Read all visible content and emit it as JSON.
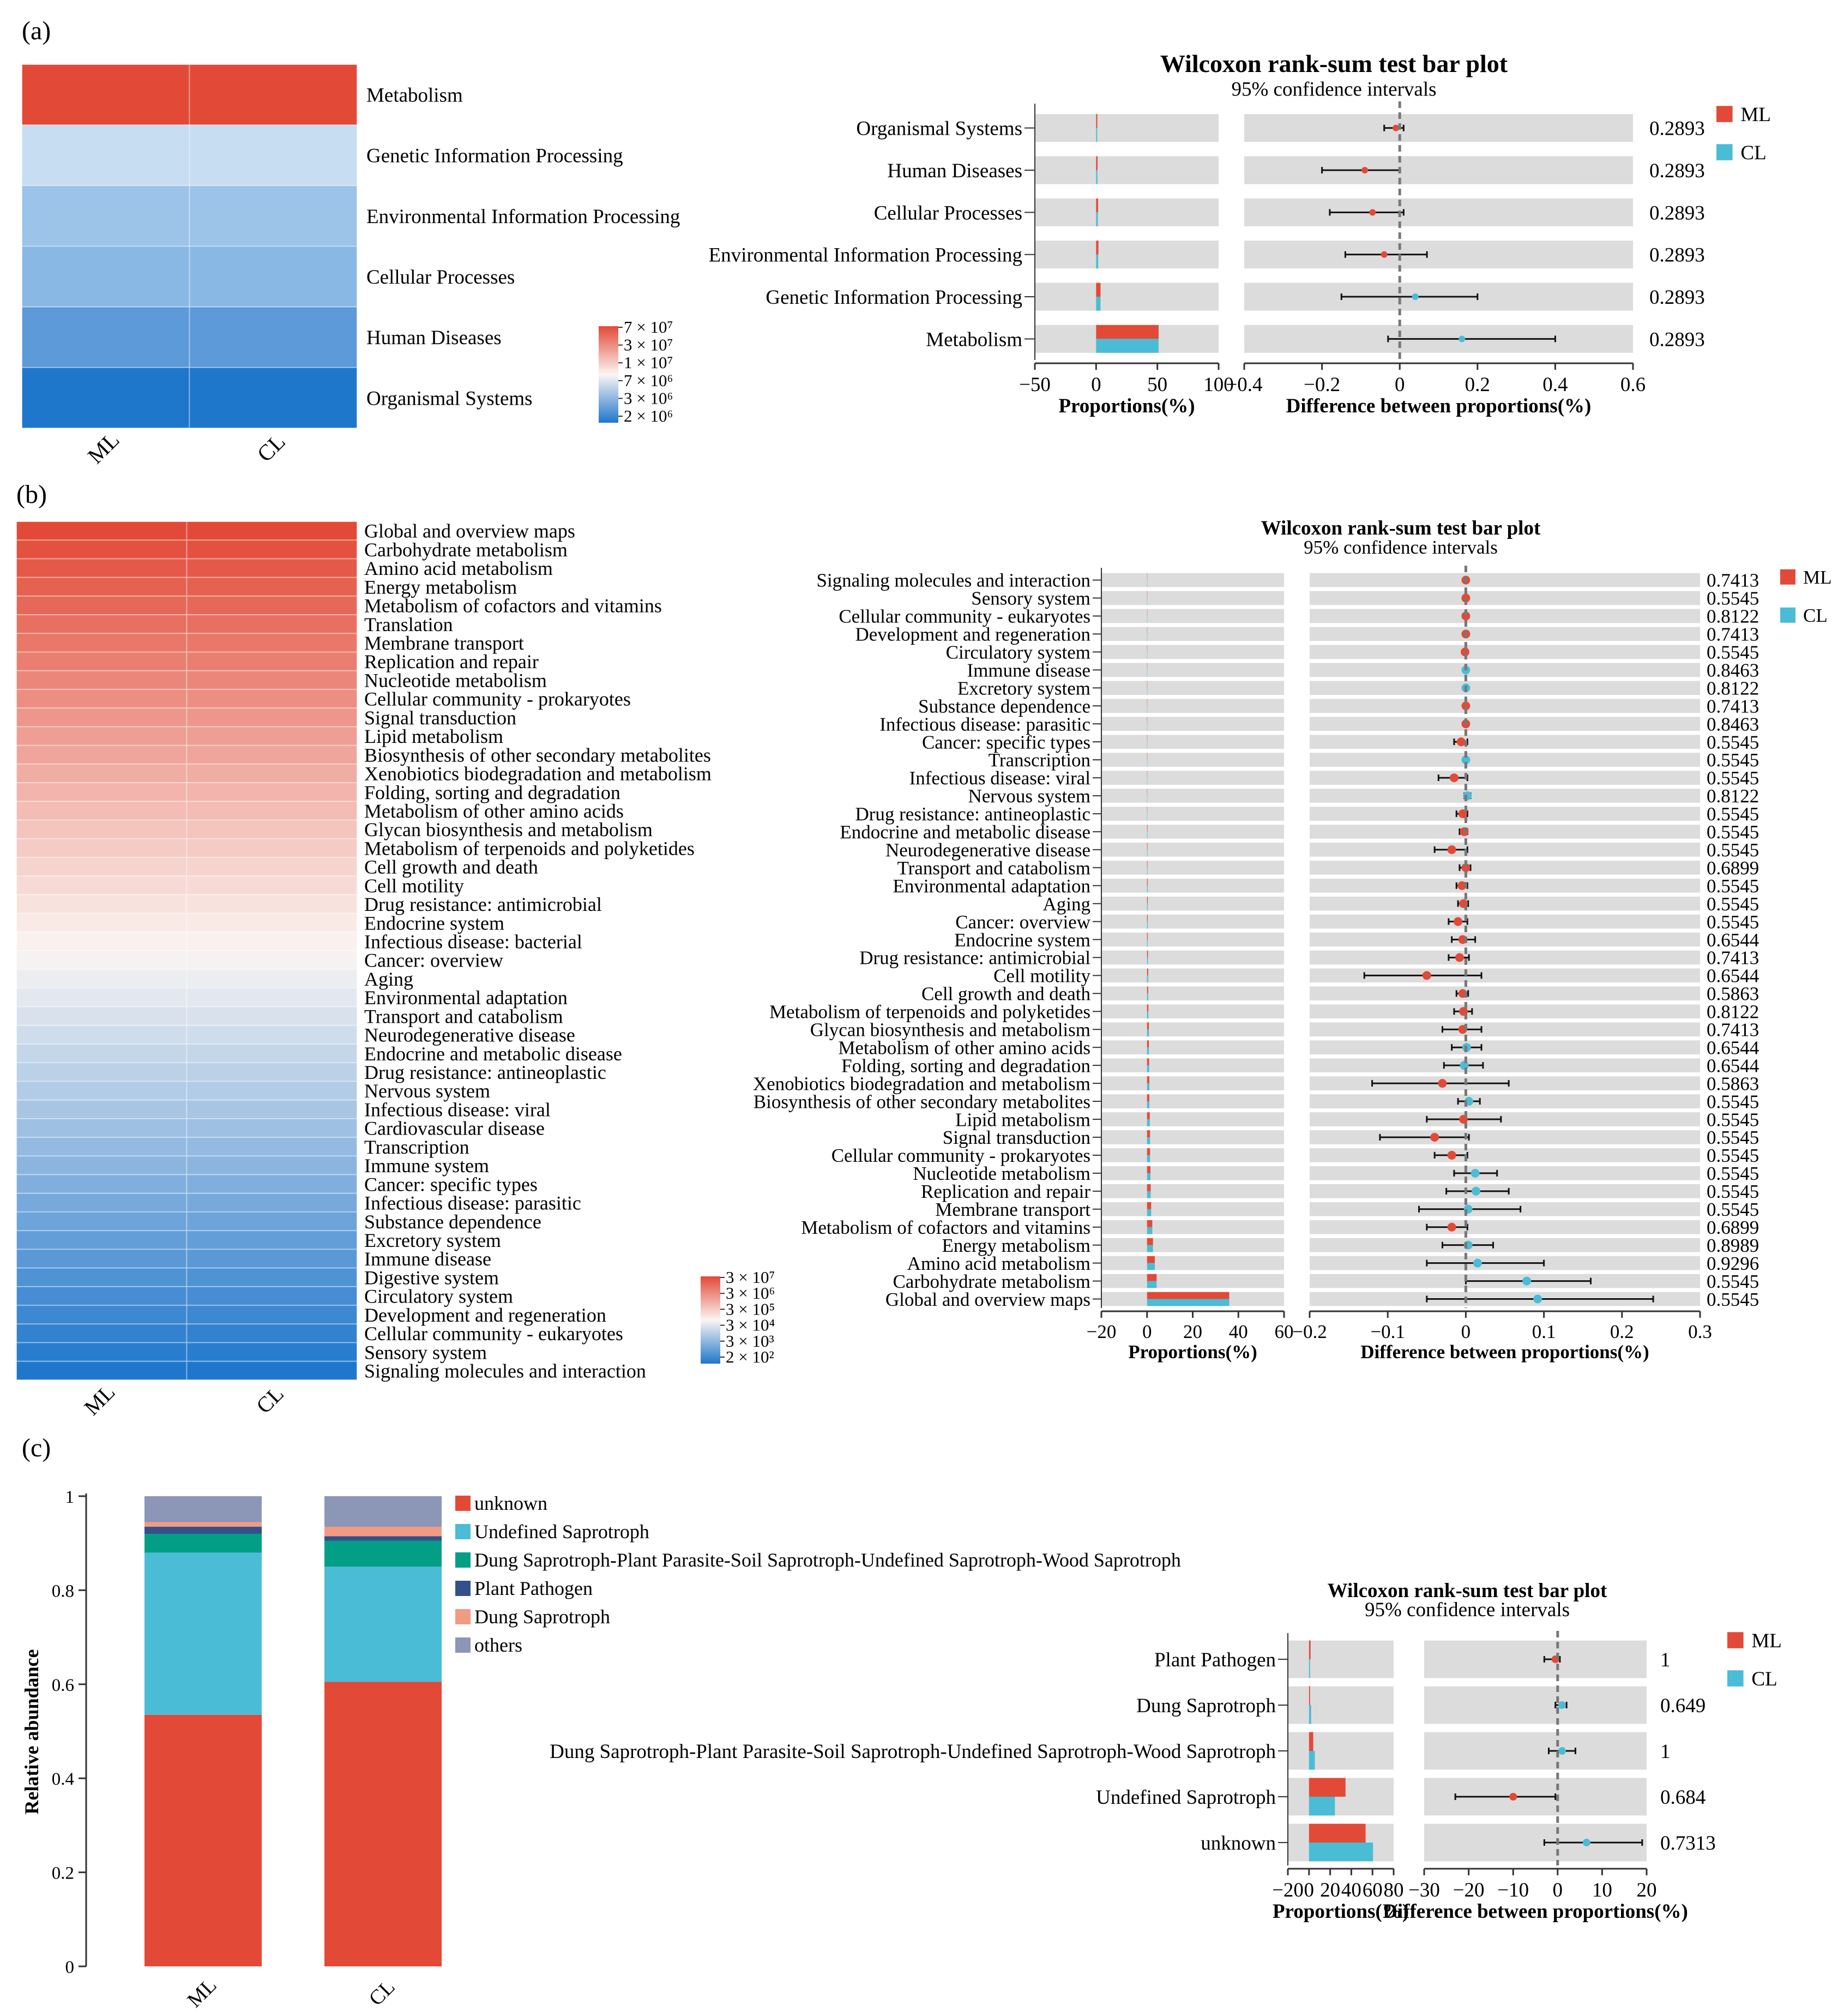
{
  "panels": {
    "a": {
      "label": "(a)",
      "heatmap": {
        "columns": [
          "ML",
          "CL"
        ],
        "rows": [
          "Metabolism",
          "Genetic Information Processing",
          "Environmental Information Processing",
          "Cellular Processes",
          "Human Diseases",
          "Organismal Systems"
        ],
        "colors": [
          "#e24a37",
          "#c6ddf2",
          "#9cc3e8",
          "#8ab8e4",
          "#5c9ad9",
          "#1f77cc"
        ],
        "scale": {
          "labels": [
            "7 × 10⁷",
            "3 × 10⁷",
            "1 × 10⁷",
            "7 × 10⁶",
            "3 × 10⁶",
            "2 × 10⁶"
          ]
        }
      },
      "test": {
        "title": "Wilcoxon rank-sum test bar plot",
        "subtitle": "95% confidence intervals",
        "legend": [
          "ML",
          "CL"
        ],
        "prop_xlabel": "Proportions(%)",
        "diff_xlabel": "Difference between proportions(%)",
        "prop_ticks": [
          "−50",
          "0",
          "50",
          "100"
        ],
        "diff_ticks": [
          "−0.4",
          "−0.2",
          "0",
          "0.2",
          "0.4",
          "0.6"
        ]
      }
    },
    "b": {
      "label": "(b)",
      "heatmap": {
        "columns": [
          "ML",
          "CL"
        ],
        "rows": [
          "Global and overview maps",
          "Carbohydrate metabolism",
          "Amino acid metabolism",
          "Energy metabolism",
          "Metabolism of cofactors and vitamins",
          "Translation",
          "Membrane transport",
          "Replication and repair",
          "Nucleotide metabolism",
          "Cellular community - prokaryotes",
          "Signal transduction",
          "Lipid metabolism",
          "Biosynthesis of other secondary metabolites",
          "Xenobiotics biodegradation and metabolism",
          "Folding, sorting and degradation",
          "Metabolism of other amino acids",
          "Glycan biosynthesis and metabolism",
          "Metabolism of terpenoids and polyketides",
          "Cell growth and death",
          "Cell motility",
          "Drug resistance: antimicrobial",
          "Endocrine system",
          "Infectious disease: bacterial",
          "Cancer: overview",
          "Aging",
          "Environmental adaptation",
          "Transport and catabolism",
          "Neurodegenerative disease",
          "Endocrine and metabolic disease",
          "Drug resistance: antineoplastic",
          "Nervous system",
          "Infectious disease: viral",
          "Cardiovascular disease",
          "Transcription",
          "Immune system",
          "Cancer: specific types",
          "Infectious disease: parasitic",
          "Substance dependence",
          "Excretory system",
          "Immune disease",
          "Digestive system",
          "Circulatory system",
          "Development and regeneration",
          "Cellular community - eukaryotes",
          "Sensory system",
          "Signaling molecules and interaction"
        ],
        "scale": {
          "labels": [
            "3 × 10⁷",
            "3 × 10⁶",
            "3 × 10⁵",
            "3 × 10⁴",
            "3 × 10³",
            "2 × 10²"
          ]
        }
      },
      "test": {
        "title": "Wilcoxon rank-sum test bar plot",
        "subtitle": "95% confidence intervals",
        "legend": [
          "ML",
          "CL"
        ],
        "prop_xlabel": "Proportions(%)",
        "diff_xlabel": "Difference between proportions(%)",
        "prop_ticks": [
          "−20",
          "0",
          "20",
          "40",
          "60"
        ],
        "diff_ticks": [
          "−0.2",
          "−0.1",
          "0",
          "0.1",
          "0.2",
          "0.3"
        ]
      }
    },
    "c": {
      "label": "(c)",
      "stacked": {
        "ylabel": "Relative abundance",
        "yticks": [
          "0",
          "0.2",
          "0.4",
          "0.6",
          "0.8",
          "1"
        ],
        "legend": [
          "unknown",
          "Undefined Saprotroph",
          "Dung Saprotroph-Plant Parasite-Soil Saprotroph-Undefined Saprotroph-Wood Saprotroph",
          "Plant Pathogen",
          "Dung Saprotroph",
          "others"
        ]
      },
      "test": {
        "title": "Wilcoxon rank-sum test bar plot",
        "subtitle": "95% confidence intervals",
        "legend": [
          "ML",
          "CL"
        ],
        "prop_xlabel": "Proportions(%)",
        "diff_xlabel": "Difference between proportions(%)",
        "prop_ticks": [
          "−20",
          "0",
          "20",
          "40",
          "60",
          "80"
        ],
        "diff_ticks": [
          "−30",
          "−20",
          "−10",
          "0",
          "10",
          "20"
        ]
      }
    }
  },
  "colors": {
    "ml": "#e24a37",
    "cl": "#4bbcd5",
    "track": "#dcdcdc",
    "unknown": "#e24a37",
    "undefined_saprotroph": "#4bbcd5",
    "dung_complex": "#029e86",
    "plant_pathogen": "#34508a",
    "dung_saprotroph": "#f19b83",
    "others": "#8c96b6"
  },
  "chart_data": [
    {
      "type": "heatmap",
      "title": "",
      "columns": [
        "ML",
        "CL"
      ],
      "rows": [
        "Metabolism",
        "Genetic Information Processing",
        "Environmental Information Processing",
        "Cellular Processes",
        "Human Diseases",
        "Organismal Systems"
      ],
      "color_scale_labels": [
        "7 × 10⁷",
        "3 × 10⁷",
        "1 × 10⁷",
        "7 × 10⁶",
        "3 × 10⁶",
        "2 × 10⁶"
      ]
    },
    {
      "type": "bar",
      "title": "Wilcoxon rank-sum test bar plot",
      "subtitle": "95% confidence intervals",
      "categories": [
        "Organismal Systems",
        "Human Diseases",
        "Cellular Processes",
        "Environmental Information Processing",
        "Genetic Information Processing",
        "Metabolism"
      ],
      "series": [
        {
          "name": "ML",
          "values": [
            1,
            1.2,
            1.6,
            1.9,
            3.6,
            51
          ]
        },
        {
          "name": "CL",
          "values": [
            0.9,
            1.1,
            1.4,
            1.7,
            3.6,
            51
          ]
        }
      ],
      "difference": {
        "estimate": [
          -0.01,
          -0.09,
          -0.07,
          -0.04,
          0.04,
          0.16
        ],
        "ci_low": [
          -0.04,
          -0.2,
          -0.18,
          -0.14,
          -0.15,
          -0.03
        ],
        "ci_high": [
          0.01,
          0,
          0.01,
          0.07,
          0.2,
          0.4
        ],
        "higher_group": [
          "ML",
          "ML",
          "ML",
          "ML",
          "CL",
          "CL"
        ]
      },
      "p_values": [
        "0.2893",
        "0.2893",
        "0.2893",
        "0.2893",
        "0.2893",
        "0.2893"
      ],
      "xlabel": "Proportions(%)",
      "xlim": [
        -50,
        100
      ],
      "diff_xlabel": "Difference between proportions(%)",
      "diff_xlim": [
        -0.4,
        0.6
      ]
    },
    {
      "type": "heatmap",
      "title": "",
      "columns": [
        "ML",
        "CL"
      ],
      "color_scale_labels": [
        "3 × 10⁷",
        "3 × 10⁶",
        "3 × 10⁵",
        "3 × 10⁴",
        "3 × 10³",
        "2 × 10²"
      ],
      "rows": [
        "Global and overview maps",
        "Carbohydrate metabolism",
        "Amino acid metabolism",
        "Energy metabolism",
        "Metabolism of cofactors and vitamins",
        "Translation",
        "Membrane transport",
        "Replication and repair",
        "Nucleotide metabolism",
        "Cellular community - prokaryotes",
        "Signal transduction",
        "Lipid metabolism",
        "Biosynthesis of other secondary metabolites",
        "Xenobiotics biodegradation and metabolism",
        "Folding, sorting and degradation",
        "Metabolism of other amino acids",
        "Glycan biosynthesis and metabolism",
        "Metabolism of terpenoids and polyketides",
        "Cell growth and death",
        "Cell motility",
        "Drug resistance: antimicrobial",
        "Endocrine system",
        "Infectious disease: bacterial",
        "Cancer: overview",
        "Aging",
        "Environmental adaptation",
        "Transport and catabolism",
        "Neurodegenerative disease",
        "Endocrine and metabolic disease",
        "Drug resistance: antineoplastic",
        "Nervous system",
        "Infectious disease: viral",
        "Cardiovascular disease",
        "Transcription",
        "Immune system",
        "Cancer: specific types",
        "Infectious disease: parasitic",
        "Substance dependence",
        "Excretory system",
        "Immune disease",
        "Digestive system",
        "Circulatory system",
        "Development and regeneration",
        "Cellular community - eukaryotes",
        "Sensory system",
        "Signaling molecules and interaction"
      ]
    },
    {
      "type": "bar",
      "title": "Wilcoxon rank-sum test bar plot",
      "subtitle": "95% confidence intervals",
      "categories": [
        "Signaling molecules and interaction",
        "Sensory system",
        "Cellular community - eukaryotes",
        "Development and regeneration",
        "Circulatory system",
        "Immune disease",
        "Excretory system",
        "Substance dependence",
        "Infectious disease: parasitic",
        "Cancer: specific types",
        "Transcription",
        "Infectious disease: viral",
        "Nervous system",
        "Drug resistance: antineoplastic",
        "Endocrine and metabolic disease",
        "Neurodegenerative disease",
        "Transport and catabolism",
        "Environmental adaptation",
        "Aging",
        "Cancer: overview",
        "Endocrine system",
        "Drug resistance: antimicrobial",
        "Cell motility",
        "Cell growth and death",
        "Metabolism of terpenoids and polyketides",
        "Glycan biosynthesis and metabolism",
        "Metabolism of other amino acids",
        "Folding, sorting and degradation",
        "Xenobiotics biodegradation and metabolism",
        "Biosynthesis of other secondary metabolites",
        "Lipid metabolism",
        "Signal transduction",
        "Cellular community - prokaryotes",
        "Nucleotide metabolism",
        "Replication and repair",
        "Membrane transport",
        "Metabolism of cofactors and vitamins",
        "Energy metabolism",
        "Amino acid metabolism",
        "Carbohydrate metabolism",
        "Global and overview maps"
      ],
      "series": [
        {
          "name": "ML",
          "values": [
            0.01,
            0.01,
            0.01,
            0.01,
            0.02,
            0.02,
            0.02,
            0.03,
            0.03,
            0.06,
            0.07,
            0.08,
            0.1,
            0.1,
            0.2,
            0.2,
            0.2,
            0.3,
            0.3,
            0.3,
            0.3,
            0.4,
            0.5,
            0.5,
            0.6,
            0.8,
            0.8,
            0.9,
            1.0,
            1.0,
            1.2,
            1.3,
            1.3,
            1.5,
            1.6,
            1.8,
            2.3,
            2.6,
            3.4,
            4.2,
            36
          ]
        },
        {
          "name": "CL",
          "values": [
            0.01,
            0.01,
            0.01,
            0.01,
            0.02,
            0.02,
            0.02,
            0.03,
            0.03,
            0.06,
            0.07,
            0.08,
            0.1,
            0.1,
            0.2,
            0.2,
            0.2,
            0.3,
            0.3,
            0.3,
            0.3,
            0.4,
            0.5,
            0.5,
            0.6,
            0.8,
            0.8,
            0.9,
            1.0,
            1.0,
            1.2,
            1.3,
            1.3,
            1.5,
            1.6,
            1.8,
            2.3,
            2.6,
            3.4,
            4.2,
            36
          ]
        }
      ],
      "difference": {
        "estimate": [
          0,
          0,
          0,
          0,
          -0.001,
          0,
          0,
          0,
          0,
          -0.006,
          0,
          -0.015,
          0.002,
          -0.004,
          -0.002,
          -0.018,
          0,
          -0.005,
          -0.003,
          -0.01,
          -0.004,
          -0.008,
          -0.05,
          -0.004,
          -0.003,
          -0.004,
          0.001,
          -0.002,
          -0.03,
          0.004,
          -0.003,
          -0.04,
          -0.018,
          0.012,
          0.013,
          0.003,
          -0.018,
          0.003,
          0.015,
          0.078,
          0.092
        ],
        "ci_low": [
          0,
          0,
          0,
          0,
          -0.002,
          0,
          0,
          0,
          -0.002,
          -0.015,
          -0.003,
          -0.035,
          -0.002,
          -0.012,
          -0.008,
          -0.04,
          -0.008,
          -0.012,
          -0.01,
          -0.022,
          -0.018,
          -0.022,
          -0.13,
          -0.012,
          -0.015,
          -0.03,
          -0.018,
          -0.028,
          -0.12,
          -0.01,
          -0.05,
          -0.11,
          -0.04,
          -0.015,
          -0.025,
          -0.06,
          -0.05,
          -0.03,
          -0.05,
          0,
          -0.05
        ],
        "ci_high": [
          0,
          0,
          0,
          0,
          0.001,
          0.001,
          0.001,
          0.001,
          0.002,
          0.002,
          0.002,
          0.002,
          0.006,
          0.002,
          0.002,
          0.002,
          0.006,
          0.002,
          0.003,
          0.002,
          0.012,
          0.004,
          0.02,
          0.003,
          0.008,
          0.02,
          0.02,
          0.022,
          0.055,
          0.018,
          0.045,
          0.004,
          0.002,
          0.04,
          0.055,
          0.07,
          0.002,
          0.035,
          0.1,
          0.16,
          0.24
        ],
        "higher_group": [
          "ML",
          "ML",
          "ML",
          "ML",
          "ML",
          "CL",
          "CL",
          "ML",
          "ML",
          "ML",
          "CL",
          "ML",
          "CL",
          "ML",
          "ML",
          "ML",
          "ML",
          "ML",
          "ML",
          "ML",
          "ML",
          "ML",
          "ML",
          "ML",
          "ML",
          "ML",
          "CL",
          "CL",
          "ML",
          "CL",
          "ML",
          "ML",
          "ML",
          "CL",
          "CL",
          "CL",
          "ML",
          "CL",
          "CL",
          "CL",
          "CL"
        ]
      },
      "p_values": [
        "0.7413",
        "0.5545",
        "0.8122",
        "0.7413",
        "0.5545",
        "0.8463",
        "0.8122",
        "0.7413",
        "0.8463",
        "0.5545",
        "0.5545",
        "0.5545",
        "0.8122",
        "0.5545",
        "0.5545",
        "0.5545",
        "0.6899",
        "0.5545",
        "0.5545",
        "0.5545",
        "0.6544",
        "0.7413",
        "0.6544",
        "0.5863",
        "0.8122",
        "0.7413",
        "0.6544",
        "0.6544",
        "0.5863",
        "0.5545",
        "0.5545",
        "0.5545",
        "0.5545",
        "0.5545",
        "0.5545",
        "0.5545",
        "0.6899",
        "0.8989",
        "0.9296",
        "0.5545",
        "0.5545"
      ],
      "xlabel": "Proportions(%)",
      "xlim": [
        -20,
        60
      ],
      "diff_xlabel": "Difference between proportions(%)",
      "diff_xlim": [
        -0.2,
        0.3
      ]
    },
    {
      "type": "bar",
      "stacked": true,
      "title": "",
      "categories": [
        "ML",
        "CL"
      ],
      "series": [
        {
          "name": "unknown",
          "values": [
            0.535,
            0.605
          ]
        },
        {
          "name": "Undefined Saprotroph",
          "values": [
            0.345,
            0.245
          ]
        },
        {
          "name": "Dung Saprotroph-Plant Parasite-Soil Saprotroph-Undefined Saprotroph-Wood Saprotroph",
          "values": [
            0.04,
            0.055
          ]
        },
        {
          "name": "Plant Pathogen",
          "values": [
            0.015,
            0.01
          ]
        },
        {
          "name": "Dung Saprotroph",
          "values": [
            0.01,
            0.02
          ]
        },
        {
          "name": "others",
          "values": [
            0.055,
            0.065
          ]
        }
      ],
      "xlabel": "",
      "ylabel": "Relative abundance",
      "ylim": [
        0,
        1
      ]
    },
    {
      "type": "bar",
      "title": "Wilcoxon rank-sum test bar plot",
      "subtitle": "95% confidence intervals",
      "categories": [
        "Plant Pathogen",
        "Dung Saprotroph",
        "Dung Saprotroph-Plant Parasite-Soil Saprotroph-Undefined Saprotroph-Wood Saprotroph",
        "Undefined Saprotroph",
        "unknown"
      ],
      "series": [
        {
          "name": "ML",
          "values": [
            1.5,
            1.0,
            4.0,
            34.5,
            53.5
          ]
        },
        {
          "name": "CL",
          "values": [
            1.0,
            2.0,
            5.5,
            24.5,
            60.5
          ]
        }
      ],
      "difference": {
        "estimate": [
          -0.5,
          1.0,
          1.0,
          -10.0,
          6.5
        ],
        "ci_low": [
          -3,
          -0.5,
          -2,
          -23,
          -3
        ],
        "ci_high": [
          0.5,
          2,
          4,
          -0.5,
          19
        ],
        "higher_group": [
          "ML",
          "CL",
          "CL",
          "ML",
          "CL"
        ]
      },
      "p_values": [
        "1",
        "0.649",
        "1",
        "0.684",
        "0.7313"
      ],
      "xlabel": "Proportions(%)",
      "xlim": [
        -20,
        80
      ],
      "diff_xlabel": "Difference between proportions(%)",
      "diff_xlim": [
        -30,
        20
      ]
    }
  ]
}
